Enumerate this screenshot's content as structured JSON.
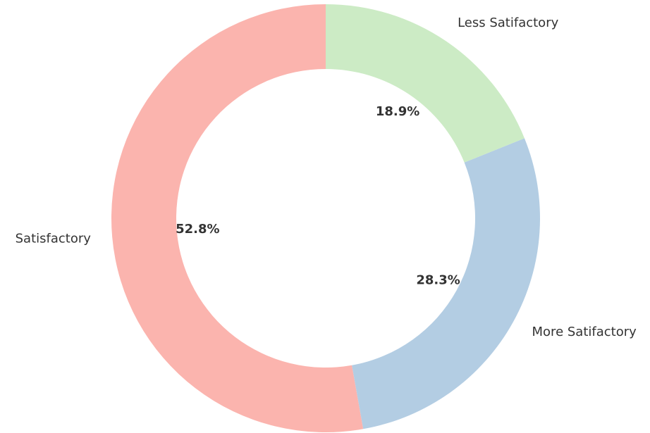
{
  "chart_data": {
    "type": "donut",
    "categories": [
      "Satisfactory",
      "More Satifactory",
      "Less Satifactory"
    ],
    "values": [
      52.8,
      28.3,
      18.9
    ],
    "value_labels": [
      "52.8%",
      "28.3%",
      "18.9%"
    ],
    "colors": [
      "#fbb4ae",
      "#b3cde3",
      "#ccebc5"
    ],
    "start_angle": 90,
    "counterclockwise": true
  }
}
